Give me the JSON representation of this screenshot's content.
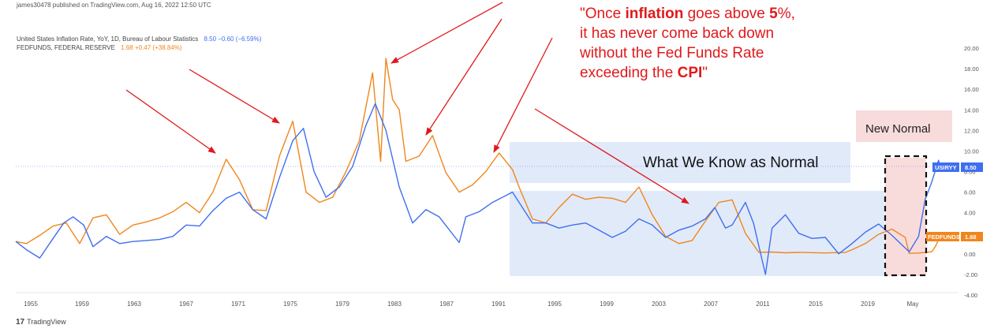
{
  "header": {
    "published": "james30478 published on TradingView.com, Aug 16, 2022 12:50 UTC"
  },
  "legend": [
    {
      "name": "United States Inflation Rate, YoY, 1D, Bureau of Labour Statistics",
      "values": "8.50  −0.60 (−6.59%)",
      "color": "#3f6ff0"
    },
    {
      "name": "FEDFUNDS, FEDERAL RESERVE",
      "values": "1.68  +0.47 (+38.84%)",
      "color": "#f0861d"
    }
  ],
  "annotation": {
    "open_quote": "\"Once ",
    "bold1": "inflation",
    "mid1": " goes above ",
    "bold2": "5",
    "mid2": "%, it has never come back down without the Fed Funds Rate exceeding the ",
    "bold3": "CPI",
    "close_quote": "\""
  },
  "labels": {
    "normal": "What We Know as Normal",
    "new_normal": "New Normal"
  },
  "badges": {
    "usiryy": "USIRYY",
    "usiryy_value": "8.50",
    "fedfunds": "FEDFUNDS",
    "fedfunds_value": "1.68"
  },
  "footer": {
    "brand": "TradingView",
    "logo": "tv-logo-icon"
  },
  "colors": {
    "cpi": "#3f6ff0",
    "fed": "#f0861d",
    "arrows": "#e0191c",
    "normal_box": "#dbe5f8",
    "new_normal_box": "#f8dcdc"
  },
  "chart_data": {
    "type": "line",
    "x_tick_labels": [
      "1955",
      "1959",
      "1963",
      "1967",
      "1971",
      "1975",
      "1979",
      "1983",
      "1987",
      "1991",
      "1995",
      "1999",
      "2003",
      "2007",
      "2011",
      "2015",
      "2019",
      "May"
    ],
    "y_tick_labels": [
      "20.00",
      "18.00",
      "16.00",
      "14.00",
      "12.00",
      "10.00",
      "8.00",
      "6.00",
      "4.00",
      "2.00",
      "0.00",
      "-2.00",
      "-4.00"
    ],
    "ylim": [
      -4,
      20
    ],
    "xlim": [
      1953.2,
      2024.0
    ],
    "series": [
      {
        "name": "United States Inflation Rate, YoY, 1D, Bureau of Labour Statistics",
        "points": [
          [
            1953.2,
            1.2
          ],
          [
            1954.0,
            0.4
          ],
          [
            1955.0,
            -0.4
          ],
          [
            1956.0,
            1.5
          ],
          [
            1956.8,
            3.0
          ],
          [
            1957.5,
            3.6
          ],
          [
            1958.3,
            2.8
          ],
          [
            1959.0,
            0.7
          ],
          [
            1960.0,
            1.7
          ],
          [
            1961.0,
            1.0
          ],
          [
            1962.0,
            1.2
          ],
          [
            1963.0,
            1.3
          ],
          [
            1964.0,
            1.4
          ],
          [
            1965.0,
            1.7
          ],
          [
            1966.0,
            2.8
          ],
          [
            1967.0,
            2.7
          ],
          [
            1968.0,
            4.2
          ],
          [
            1969.0,
            5.4
          ],
          [
            1970.0,
            6.0
          ],
          [
            1971.0,
            4.3
          ],
          [
            1972.0,
            3.4
          ],
          [
            1973.0,
            7.4
          ],
          [
            1974.0,
            11.0
          ],
          [
            1974.8,
            12.2
          ],
          [
            1975.6,
            8.0
          ],
          [
            1976.5,
            5.5
          ],
          [
            1977.5,
            6.5
          ],
          [
            1978.5,
            8.5
          ],
          [
            1979.5,
            12.5
          ],
          [
            1980.2,
            14.6
          ],
          [
            1981.0,
            12.0
          ],
          [
            1982.0,
            6.5
          ],
          [
            1983.0,
            3.0
          ],
          [
            1984.0,
            4.3
          ],
          [
            1985.0,
            3.6
          ],
          [
            1986.5,
            1.1
          ],
          [
            1987.0,
            3.6
          ],
          [
            1988.0,
            4.1
          ],
          [
            1989.0,
            5.0
          ],
          [
            1990.5,
            6.0
          ],
          [
            1991.0,
            5.0
          ],
          [
            1992.0,
            3.0
          ],
          [
            1993.0,
            3.0
          ],
          [
            1994.0,
            2.5
          ],
          [
            1995.0,
            2.8
          ],
          [
            1996.0,
            3.0
          ],
          [
            1997.0,
            2.3
          ],
          [
            1998.0,
            1.6
          ],
          [
            1999.0,
            2.2
          ],
          [
            2000.0,
            3.4
          ],
          [
            2001.0,
            2.8
          ],
          [
            2002.0,
            1.6
          ],
          [
            2003.0,
            2.3
          ],
          [
            2004.0,
            2.7
          ],
          [
            2005.0,
            3.4
          ],
          [
            2005.7,
            4.5
          ],
          [
            2006.5,
            2.5
          ],
          [
            2007.0,
            2.8
          ],
          [
            2008.0,
            5.0
          ],
          [
            2008.6,
            3.0
          ],
          [
            2009.5,
            -2.0
          ],
          [
            2010.0,
            2.5
          ],
          [
            2011.0,
            3.8
          ],
          [
            2012.0,
            2.0
          ],
          [
            2013.0,
            1.5
          ],
          [
            2014.0,
            1.6
          ],
          [
            2015.0,
            0.0
          ],
          [
            2016.0,
            1.0
          ],
          [
            2017.0,
            2.1
          ],
          [
            2018.0,
            2.9
          ],
          [
            2019.0,
            1.8
          ],
          [
            2020.3,
            0.2
          ],
          [
            2021.0,
            1.7
          ],
          [
            2021.5,
            5.3
          ],
          [
            2022.0,
            7.0
          ],
          [
            2022.5,
            9.1
          ],
          [
            2022.6,
            8.5
          ]
        ]
      },
      {
        "name": "FEDFUNDS, FEDERAL RESERVE",
        "points": [
          [
            1953.2,
            1.2
          ],
          [
            1954.0,
            1.0
          ],
          [
            1955.0,
            1.8
          ],
          [
            1956.0,
            2.7
          ],
          [
            1957.0,
            3.0
          ],
          [
            1958.0,
            1.0
          ],
          [
            1959.0,
            3.5
          ],
          [
            1960.0,
            3.8
          ],
          [
            1961.0,
            1.9
          ],
          [
            1962.0,
            2.8
          ],
          [
            1963.0,
            3.1
          ],
          [
            1964.0,
            3.5
          ],
          [
            1965.0,
            4.1
          ],
          [
            1966.0,
            5.0
          ],
          [
            1967.0,
            4.0
          ],
          [
            1968.0,
            6.0
          ],
          [
            1969.0,
            9.2
          ],
          [
            1970.0,
            7.2
          ],
          [
            1971.0,
            4.3
          ],
          [
            1972.0,
            4.2
          ],
          [
            1973.0,
            9.5
          ],
          [
            1974.0,
            12.9
          ],
          [
            1975.0,
            6.0
          ],
          [
            1976.0,
            5.0
          ],
          [
            1977.0,
            5.5
          ],
          [
            1978.0,
            8.0
          ],
          [
            1979.0,
            11.0
          ],
          [
            1980.0,
            17.6
          ],
          [
            1980.6,
            9.0
          ],
          [
            1981.0,
            19.0
          ],
          [
            1981.5,
            15.0
          ],
          [
            1982.0,
            14.0
          ],
          [
            1982.5,
            9.0
          ],
          [
            1983.5,
            9.5
          ],
          [
            1984.5,
            11.5
          ],
          [
            1985.5,
            7.9
          ],
          [
            1986.5,
            6.0
          ],
          [
            1987.5,
            6.7
          ],
          [
            1988.5,
            8.0
          ],
          [
            1989.5,
            9.8
          ],
          [
            1990.5,
            8.2
          ],
          [
            1991.0,
            6.5
          ],
          [
            1992.0,
            3.4
          ],
          [
            1993.0,
            3.0
          ],
          [
            1994.0,
            4.5
          ],
          [
            1995.0,
            5.8
          ],
          [
            1996.0,
            5.3
          ],
          [
            1997.0,
            5.5
          ],
          [
            1998.0,
            5.4
          ],
          [
            1999.0,
            5.0
          ],
          [
            2000.0,
            6.5
          ],
          [
            2001.0,
            3.8
          ],
          [
            2002.0,
            1.7
          ],
          [
            2003.0,
            1.0
          ],
          [
            2004.0,
            1.3
          ],
          [
            2005.0,
            3.2
          ],
          [
            2006.0,
            5.0
          ],
          [
            2007.0,
            5.25
          ],
          [
            2008.0,
            2.0
          ],
          [
            2009.0,
            0.15
          ],
          [
            2010.0,
            0.18
          ],
          [
            2011.0,
            0.1
          ],
          [
            2012.0,
            0.14
          ],
          [
            2014.0,
            0.09
          ],
          [
            2015.5,
            0.13
          ],
          [
            2016.0,
            0.4
          ],
          [
            2017.0,
            1.0
          ],
          [
            2018.0,
            1.9
          ],
          [
            2019.0,
            2.4
          ],
          [
            2020.0,
            1.6
          ],
          [
            2020.3,
            0.05
          ],
          [
            2021.0,
            0.08
          ],
          [
            2022.0,
            0.2
          ],
          [
            2022.3,
            0.8
          ],
          [
            2022.6,
            1.68
          ]
        ]
      }
    ],
    "ref_lines": [
      8.5
    ],
    "grid": false,
    "legend_position": "top-left"
  }
}
